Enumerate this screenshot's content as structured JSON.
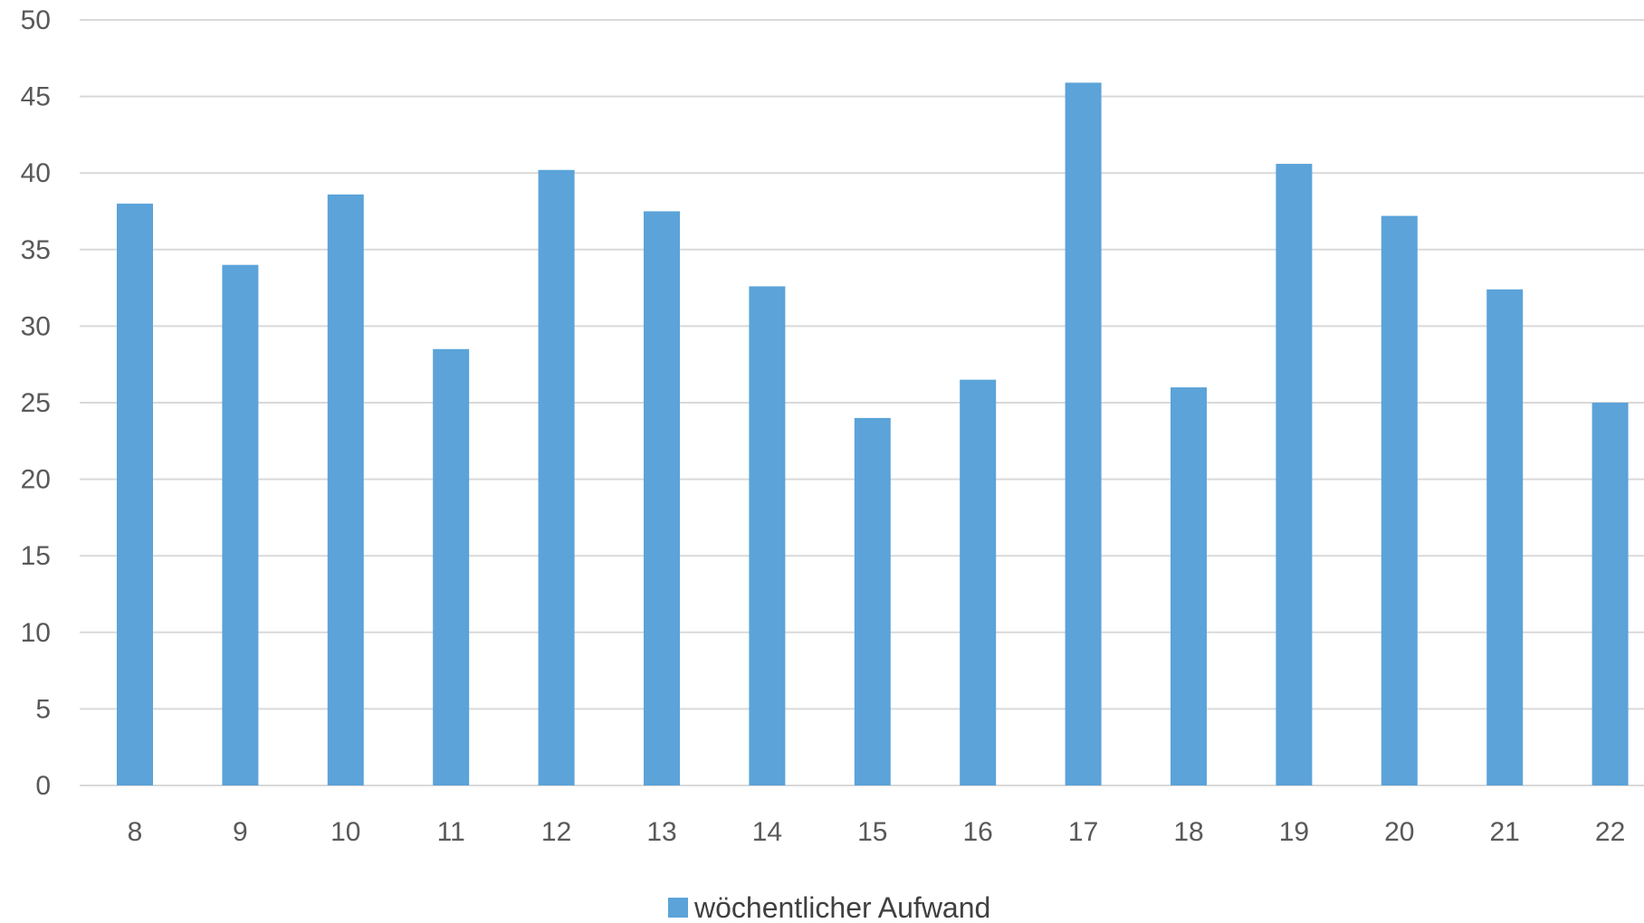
{
  "chart_data": {
    "type": "bar",
    "title": "",
    "xlabel": "",
    "ylabel": "",
    "categories": [
      "8",
      "9",
      "10",
      "11",
      "12",
      "13",
      "14",
      "15",
      "16",
      "17",
      "18",
      "19",
      "20",
      "21",
      "22"
    ],
    "series": [
      {
        "name": "wöchentlicher Aufwand",
        "values": [
          38,
          34,
          38.6,
          28.5,
          40.2,
          37.5,
          32.6,
          24,
          26.5,
          45.9,
          26,
          40.6,
          37.2,
          32.4,
          25
        ]
      }
    ],
    "ylim": [
      0,
      50
    ],
    "yticks": [
      0,
      5,
      10,
      15,
      20,
      25,
      30,
      35,
      40,
      45,
      50
    ],
    "grid": true,
    "legend_position": "bottom",
    "colors": {
      "bar": "#5ba3d9",
      "grid": "#d9d9d9",
      "tick_text": "#595959",
      "legend_text": "#404040"
    }
  }
}
